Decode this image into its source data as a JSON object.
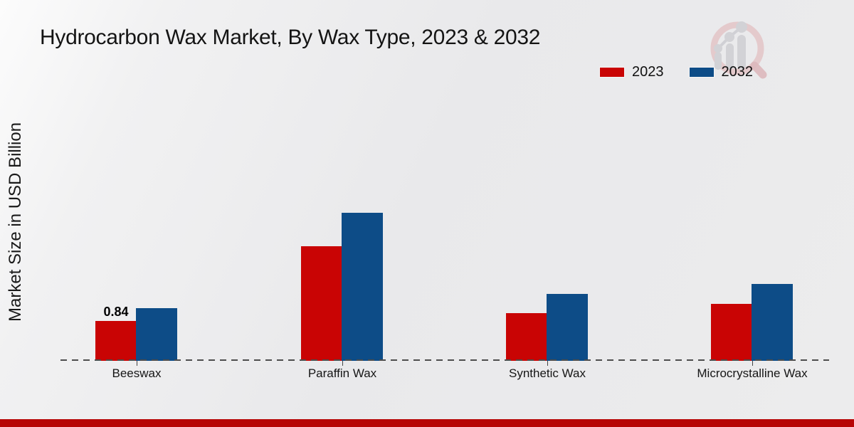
{
  "header": {
    "title": "Hydrocarbon Wax Market, By Wax Type, 2023 & 2032"
  },
  "legend": [
    {
      "label": "2023",
      "color": "#c90404"
    },
    {
      "label": "2032",
      "color": "#0d4c87"
    }
  ],
  "chart_data": {
    "type": "bar",
    "title": "Hydrocarbon Wax Market, By Wax Type, 2023 & 2032",
    "xlabel": "",
    "ylabel": "Market Size in USD Billion",
    "categories": [
      "Beeswax",
      "Paraffin Wax",
      "Synthetic Wax",
      "Microcrystalline Wax"
    ],
    "series": [
      {
        "name": "2023",
        "color": "#c90404",
        "values": [
          0.84,
          2.41,
          1.0,
          1.2
        ]
      },
      {
        "name": "2032",
        "color": "#0d4c87",
        "values": [
          1.11,
          3.12,
          1.41,
          1.62
        ]
      }
    ],
    "value_labels": [
      {
        "category": "Beeswax",
        "series": "2023",
        "text": "0.84"
      }
    ],
    "ylim": [
      0,
      4.5
    ],
    "grid": false,
    "axis_style": "dashed-baseline-only",
    "legend_position": "top-right"
  },
  "colors": {
    "background": "#ebebec",
    "footer_strip": "#b70505",
    "baseline": "#4d4d4d",
    "logo_ring": "#e3c6c9",
    "logo_bars": "#d2d2d6"
  },
  "watermark": {
    "icon": "magnifier-growth-chart-logo"
  }
}
